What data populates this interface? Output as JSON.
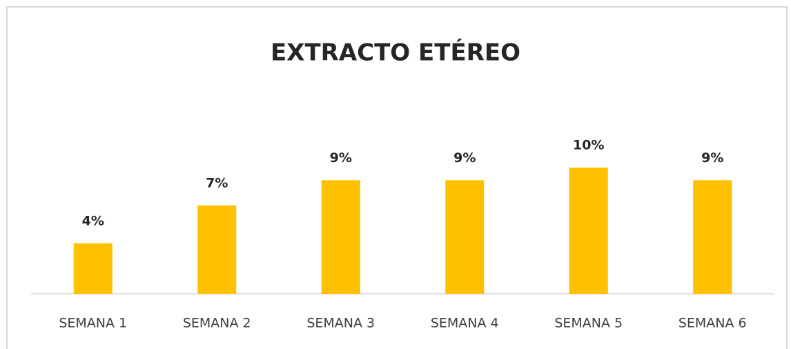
{
  "chart_data": {
    "type": "bar",
    "title": "EXTRACTO ETÉREO",
    "categories": [
      "SEMANA 1",
      "SEMANA 2",
      "SEMANA 3",
      "SEMANA 4",
      "SEMANA 5",
      "SEMANA 6"
    ],
    "values": [
      4,
      7,
      9,
      9,
      10,
      9
    ],
    "value_labels": [
      "4%",
      "7%",
      "9%",
      "9%",
      "10%",
      "9%"
    ],
    "color": "#ffc000"
  }
}
